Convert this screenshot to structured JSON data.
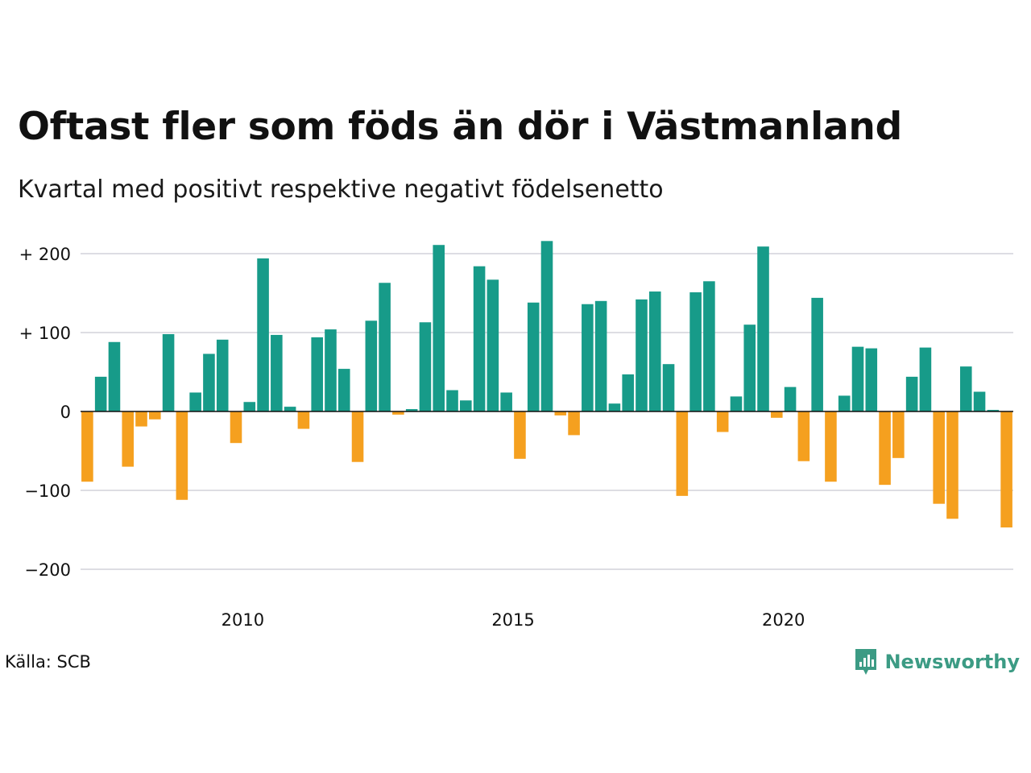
{
  "title": "Oftast fler som föds än dör i Västmanland",
  "subtitle": "Kvartal med positivt respektive negativt födelsenetto",
  "source": "Källa: SCB",
  "brand": {
    "name": "Newsworthy",
    "icon": "newsworthy-logo-icon"
  },
  "colors": {
    "positive": "#179b89",
    "negative": "#f5a01f",
    "grid": "#dddde3",
    "zero": "#111111"
  },
  "chart_data": {
    "type": "bar",
    "title": "Oftast fler som föds än dör i Västmanland",
    "subtitle": "Kvartal med positivt respektive negativt födelsenetto",
    "xlabel": "",
    "ylabel": "",
    "ylim": [
      -230,
      225
    ],
    "grid": true,
    "yticks": [
      {
        "value": 200,
        "label": "+ 200"
      },
      {
        "value": 100,
        "label": "+ 100"
      },
      {
        "value": 0,
        "label": "0"
      },
      {
        "value": -100,
        "label": "−100"
      },
      {
        "value": -200,
        "label": "−200"
      }
    ],
    "xticks": [
      {
        "value": 2010.0,
        "label": "2010"
      },
      {
        "value": 2015.0,
        "label": "2015"
      },
      {
        "value": 2020.0,
        "label": "2020"
      }
    ],
    "categories": [
      "2007 Q1",
      "2007 Q2",
      "2007 Q3",
      "2007 Q4",
      "2008 Q1",
      "2008 Q2",
      "2008 Q3",
      "2008 Q4",
      "2009 Q1",
      "2009 Q2",
      "2009 Q3",
      "2009 Q4",
      "2010 Q1",
      "2010 Q2",
      "2010 Q3",
      "2010 Q4",
      "2011 Q1",
      "2011 Q2",
      "2011 Q3",
      "2011 Q4",
      "2012 Q1",
      "2012 Q2",
      "2012 Q3",
      "2012 Q4",
      "2013 Q1",
      "2013 Q2",
      "2013 Q3",
      "2013 Q4",
      "2014 Q1",
      "2014 Q2",
      "2014 Q3",
      "2014 Q4",
      "2015 Q1",
      "2015 Q2",
      "2015 Q3",
      "2015 Q4",
      "2016 Q1",
      "2016 Q2",
      "2016 Q3",
      "2016 Q4",
      "2017 Q1",
      "2017 Q2",
      "2017 Q3",
      "2017 Q4",
      "2018 Q1",
      "2018 Q2",
      "2018 Q3",
      "2018 Q4",
      "2019 Q1",
      "2019 Q2",
      "2019 Q3",
      "2019 Q4",
      "2020 Q1",
      "2020 Q2",
      "2020 Q3",
      "2020 Q4",
      "2021 Q1",
      "2021 Q2",
      "2021 Q3",
      "2021 Q4",
      "2022 Q1",
      "2022 Q2",
      "2022 Q3",
      "2022 Q4",
      "2023 Q1",
      "2023 Q2",
      "2023 Q3",
      "2023 Q4",
      "2024 Q1"
    ],
    "values": [
      -89,
      44,
      88,
      -70,
      -19,
      -10,
      98,
      -112,
      24,
      73,
      91,
      -40,
      12,
      194,
      97,
      6,
      -22,
      94,
      104,
      54,
      -64,
      115,
      163,
      -4,
      3,
      113,
      211,
      27,
      14,
      184,
      167,
      24,
      -60,
      138,
      216,
      -5,
      -30,
      136,
      140,
      10,
      47,
      142,
      152,
      60,
      -107,
      151,
      165,
      -26,
      19,
      110,
      209,
      -8,
      31,
      -63,
      144,
      -89,
      20,
      82,
      80,
      -93,
      -59,
      44,
      81,
      -117,
      -136,
      57,
      25,
      2,
      -147
    ]
  }
}
